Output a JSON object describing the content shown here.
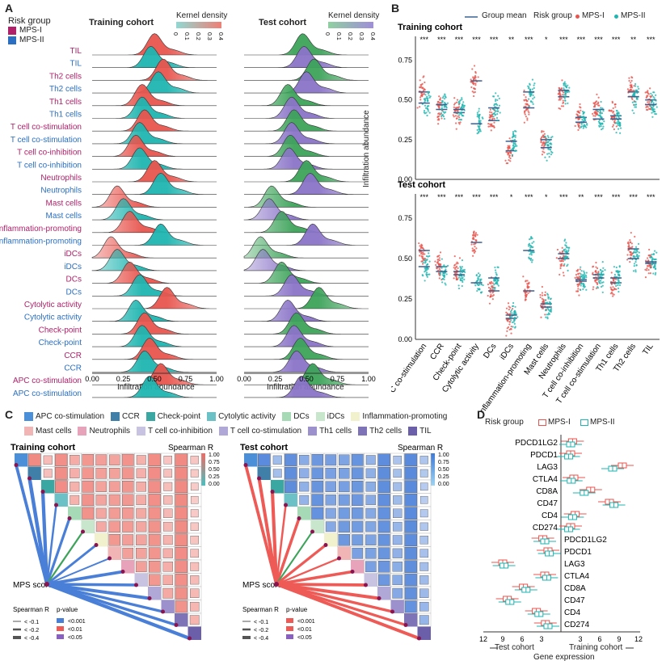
{
  "panels": {
    "a": "A",
    "b": "B",
    "c": "C",
    "d": "D"
  },
  "colors": {
    "mps1": "#b0216a",
    "mps2": "#2a6fc2",
    "red": "#e8554e",
    "teal": "#1fb5b0",
    "blue": "#4a7fd8",
    "green": "#3da35a"
  },
  "chart_data": [
    {
      "id": "A",
      "type": "area",
      "description_title_train": "Training cohort",
      "description_title_test": "Test cohort",
      "legend_title": "Risk group",
      "legend": [
        "MPS-I",
        "MPS-II"
      ],
      "colorbar_title": "Kernel density",
      "colorbar_ticks": [
        "0",
        "0.1",
        "0.2",
        "0.3",
        "0.4"
      ],
      "xlabel": "Infiltration abundance",
      "xticks": [
        "0.00",
        "0.25",
        "0.50",
        "0.75",
        "1.00"
      ],
      "xlim": [
        0,
        1
      ],
      "rows": [
        {
          "label": "TIL",
          "group": "MPS-I",
          "train_peak": 0.5,
          "test_peak": 0.47
        },
        {
          "label": "TIL",
          "group": "MPS-II",
          "train_peak": 0.47,
          "test_peak": 0.48
        },
        {
          "label": "Th2 cells",
          "group": "MPS-I",
          "train_peak": 0.57,
          "test_peak": 0.56
        },
        {
          "label": "Th2 cells",
          "group": "MPS-II",
          "train_peak": 0.53,
          "test_peak": 0.5
        },
        {
          "label": "Th1 cells",
          "group": "MPS-I",
          "train_peak": 0.4,
          "test_peak": 0.35
        },
        {
          "label": "Th1 cells",
          "group": "MPS-II",
          "train_peak": 0.4,
          "test_peak": 0.38
        },
        {
          "label": "T cell co-stimulation",
          "group": "MPS-I",
          "train_peak": 0.42,
          "test_peak": 0.4
        },
        {
          "label": "T cell co-stimulation",
          "group": "MPS-II",
          "train_peak": 0.38,
          "test_peak": 0.38
        },
        {
          "label": "T cell co-inhibition",
          "group": "MPS-I",
          "train_peak": 0.35,
          "test_peak": 0.37
        },
        {
          "label": "T cell co-inhibition",
          "group": "MPS-II",
          "train_peak": 0.38,
          "test_peak": 0.36
        },
        {
          "label": "Neutrophils",
          "group": "MPS-I",
          "train_peak": 0.5,
          "test_peak": 0.5
        },
        {
          "label": "Neutrophils",
          "group": "MPS-II",
          "train_peak": 0.55,
          "test_peak": 0.53
        },
        {
          "label": "Mast cells",
          "group": "MPS-I",
          "train_peak": 0.2,
          "test_peak": 0.22
        },
        {
          "label": "Mast cells",
          "group": "MPS-II",
          "train_peak": 0.25,
          "test_peak": 0.2
        },
        {
          "label": "Inflammation-promoting",
          "group": "MPS-I",
          "train_peak": 0.3,
          "test_peak": 0.3
        },
        {
          "label": "Inflammation-promoting",
          "group": "MPS-II",
          "train_peak": 0.55,
          "test_peak": 0.55
        },
        {
          "label": "iDCs",
          "group": "MPS-I",
          "train_peak": 0.15,
          "test_peak": 0.13
        },
        {
          "label": "iDCs",
          "group": "MPS-II",
          "train_peak": 0.2,
          "test_peak": 0.15
        },
        {
          "label": "DCs",
          "group": "MPS-I",
          "train_peak": 0.3,
          "test_peak": 0.3
        },
        {
          "label": "DCs",
          "group": "MPS-II",
          "train_peak": 0.38,
          "test_peak": 0.38
        },
        {
          "label": "Cytolytic activity",
          "group": "MPS-I",
          "train_peak": 0.6,
          "test_peak": 0.6
        },
        {
          "label": "Cytolytic activity",
          "group": "MPS-II",
          "train_peak": 0.35,
          "test_peak": 0.35
        },
        {
          "label": "Check-point",
          "group": "MPS-I",
          "train_peak": 0.42,
          "test_peak": 0.42
        },
        {
          "label": "Check-point",
          "group": "MPS-II",
          "train_peak": 0.4,
          "test_peak": 0.4
        },
        {
          "label": "CCR",
          "group": "MPS-I",
          "train_peak": 0.46,
          "test_peak": 0.45
        },
        {
          "label": "CCR",
          "group": "MPS-II",
          "train_peak": 0.42,
          "test_peak": 0.42
        },
        {
          "label": "APC co-stimulation",
          "group": "MPS-I",
          "train_peak": 0.55,
          "test_peak": 0.55
        },
        {
          "label": "APC co-stimulation",
          "group": "MPS-II",
          "train_peak": 0.46,
          "test_peak": 0.46
        }
      ]
    },
    {
      "id": "B",
      "type": "scatter",
      "legend_mean": "Group mean",
      "legend_title": "Risk group",
      "legend": [
        "MPS-I",
        "MPS-II"
      ],
      "ylabel": "Infiltration abundance",
      "yticks": [
        "0.00",
        "0.25",
        "0.50",
        "0.75"
      ],
      "ylim": [
        0,
        0.9
      ],
      "subplots": [
        {
          "title": "Training cohort",
          "significance": [
            "***",
            "***",
            "***",
            "***",
            "***",
            "**",
            "***",
            "*",
            "***",
            "***",
            "***",
            "***",
            "**",
            "***"
          ],
          "means_mps1": [
            0.55,
            0.44,
            0.42,
            0.62,
            0.37,
            0.18,
            0.45,
            0.25,
            0.52,
            0.39,
            0.44,
            0.4,
            0.55,
            0.5
          ],
          "means_mps2": [
            0.48,
            0.47,
            0.44,
            0.35,
            0.45,
            0.24,
            0.55,
            0.2,
            0.56,
            0.36,
            0.38,
            0.38,
            0.52,
            0.47
          ]
        },
        {
          "title": "Test cohort",
          "significance": [
            "***",
            "***",
            "***",
            "***",
            "***",
            "*",
            "***",
            "*",
            "***",
            "**",
            "***",
            "***",
            "***",
            "***"
          ],
          "means_mps1": [
            0.55,
            0.45,
            0.42,
            0.6,
            0.3,
            0.13,
            0.3,
            0.22,
            0.5,
            0.37,
            0.4,
            0.35,
            0.56,
            0.47
          ],
          "means_mps2": [
            0.45,
            0.42,
            0.4,
            0.35,
            0.38,
            0.15,
            0.55,
            0.2,
            0.53,
            0.36,
            0.38,
            0.38,
            0.5,
            0.48
          ]
        }
      ],
      "categories": [
        "APC co-stimulation",
        "CCR",
        "Check-point",
        "Cytolytic activity",
        "DCs",
        "iDCs",
        "Inflammation-promoting",
        "Mast cells",
        "Neutrophils",
        "T cell co-inhibition",
        "T cell co-stimulation",
        "Th1 cells",
        "Th2 cells",
        "TIL"
      ]
    },
    {
      "id": "C",
      "type": "heatmap",
      "legend": [
        "APC co-stimulation",
        "CCR",
        "Check-point",
        "Cytolytic activity",
        "DCs",
        "iDCs",
        "Inflammation-promoting",
        "Mast cells",
        "Neutrophils",
        "T cell co-inhibition",
        "T cell co-stimulation",
        "Th1 cells",
        "Th2 cells",
        "TIL"
      ],
      "legend_colors": [
        "#4c8fd9",
        "#3f7fa8",
        "#3aa7a3",
        "#6cc1c6",
        "#a6d9b5",
        "#c8e6cb",
        "#f1f2cd",
        "#f2b5b5",
        "#e7a3b9",
        "#c9c3e2",
        "#b0a8d6",
        "#9c91cc",
        "#7f73b8",
        "#6a5fa8"
      ],
      "titles": [
        "Training cohort",
        "Test cohort"
      ],
      "colorbar_title": "Spearman R",
      "colorbar_ticks": [
        "1.00",
        "0.75",
        "0.50",
        "0.25",
        "0.00"
      ],
      "node_label": "MPS score",
      "legend_r_title": "Spearman R",
      "legend_r": [
        "< -0.1",
        "< -0.2",
        "< -0.4"
      ],
      "legend_p_title": "p-value",
      "legend_p": [
        "<0.001",
        "<0.01",
        "<0.05"
      ],
      "train_corr": [
        0.55,
        0.7,
        0.65,
        0.3,
        0.45,
        0.25,
        0.4,
        0.2,
        0.55,
        0.5,
        0.6,
        0.45,
        0.5,
        0.65
      ],
      "test_corr": [
        0.55,
        0.6,
        0.62,
        0.3,
        0.5,
        0.22,
        0.45,
        0.25,
        0.5,
        0.55,
        0.6,
        0.48,
        0.45,
        0.58
      ]
    },
    {
      "id": "D",
      "type": "bar",
      "legend_title": "Risk group",
      "legend": [
        "MPS-I",
        "MPS-II"
      ],
      "genes": [
        "PDCD1LG2",
        "PDCD1",
        "LAG3",
        "CTLA4",
        "CD8A",
        "CD47",
        "CD4",
        "CD274"
      ],
      "xlabel": "Gene expression",
      "x_left_label": "Test cohort",
      "x_right_label": "Training cohort",
      "xticks_left": [
        "12",
        "9",
        "6",
        "3"
      ],
      "xticks_right": [
        "3",
        "6",
        "9",
        "12"
      ],
      "train_mps1": [
        1.8,
        1.5,
        9.5,
        2.0,
        4.6,
        7.5,
        2.2,
        1.5
      ],
      "train_mps2": [
        1.5,
        1.2,
        8.0,
        1.6,
        3.6,
        8.2,
        1.8,
        1.2
      ],
      "test_mps1": [
        2.8,
        2.0,
        9.0,
        2.5,
        5.8,
        8.3,
        3.8,
        2.4
      ],
      "test_mps2": [
        2.5,
        1.8,
        8.8,
        2.2,
        5.4,
        7.9,
        3.4,
        2.0
      ]
    }
  ],
  "panelA": {
    "legend_title": "Risk group",
    "legend_mps1": "MPS-I",
    "legend_mps2": "MPS-II",
    "title_train": "Training cohort",
    "title_test": "Test cohort",
    "kd_left": "Kernel density",
    "kd_right": "Kernel density",
    "xlabel_left": "Infiltration abundance",
    "xlabel_right": "Infiltration abundance"
  },
  "panelB": {
    "legend_mean": "Group mean",
    "legend_title": "Risk group",
    "legend_mps1": "MPS-I",
    "legend_mps2": "MPS-II",
    "ylabel": "Infiltration abundance"
  },
  "panelD": {
    "legend_title": "Risk group",
    "legend_mps1": "MPS-I",
    "legend_mps2": "MPS-II",
    "xlabel": "Gene expression",
    "left": "Test cohort",
    "right": "Training cohort"
  }
}
